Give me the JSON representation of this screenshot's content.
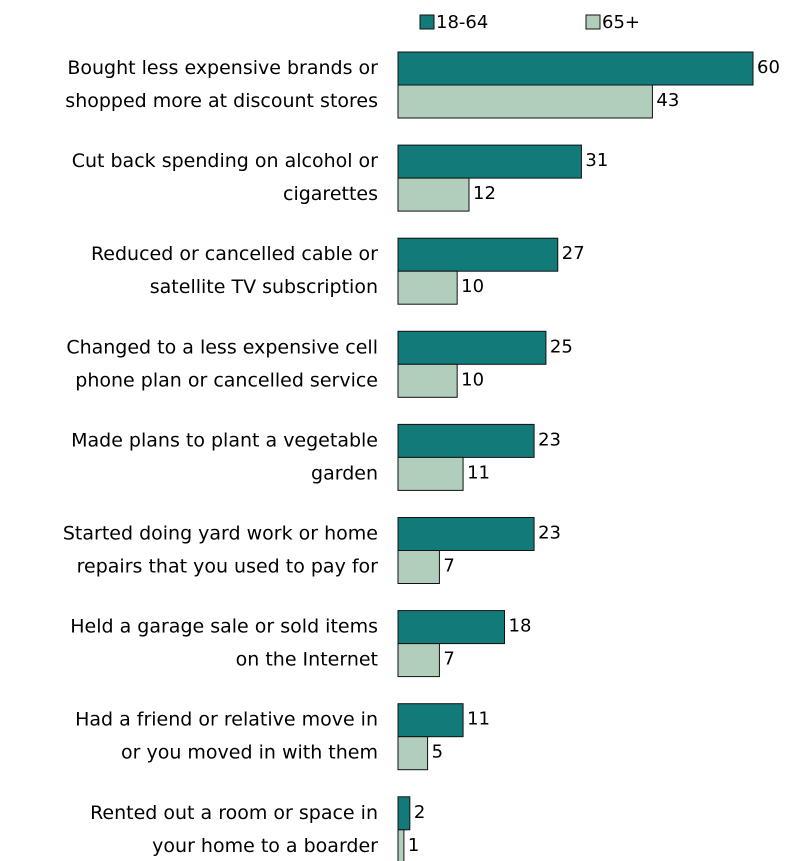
{
  "chart_data": {
    "type": "bar",
    "orientation": "horizontal",
    "categories": [
      [
        "Bought less expensive brands or",
        "shopped more at discount stores"
      ],
      [
        "Cut back spending on alcohol or",
        "cigarettes"
      ],
      [
        "Reduced or cancelled cable or",
        "satellite TV subscription"
      ],
      [
        "Changed to a less expensive cell",
        "phone plan or cancelled service"
      ],
      [
        "Made plans to plant a vegetable",
        "garden"
      ],
      [
        "Started doing yard work or home",
        "repairs that you used to pay for"
      ],
      [
        "Held a garage sale or sold items",
        "on the Internet"
      ],
      [
        "Had a friend or relative move in",
        "or you moved in with them"
      ],
      [
        "Rented out a room or space in",
        "your home to a boarder"
      ]
    ],
    "series": [
      {
        "name": "18-64",
        "values": [
          60,
          31,
          27,
          25,
          23,
          23,
          18,
          11,
          2
        ]
      },
      {
        "name": "65+",
        "values": [
          43,
          12,
          10,
          10,
          11,
          7,
          7,
          5,
          1
        ]
      }
    ],
    "xlim": [
      0,
      60
    ],
    "legend": "top",
    "grid": false,
    "data_labels": true,
    "colors": {
      "18-64": "#137a7a",
      "65+": "#b0cebb",
      "outline": "#111111"
    }
  }
}
